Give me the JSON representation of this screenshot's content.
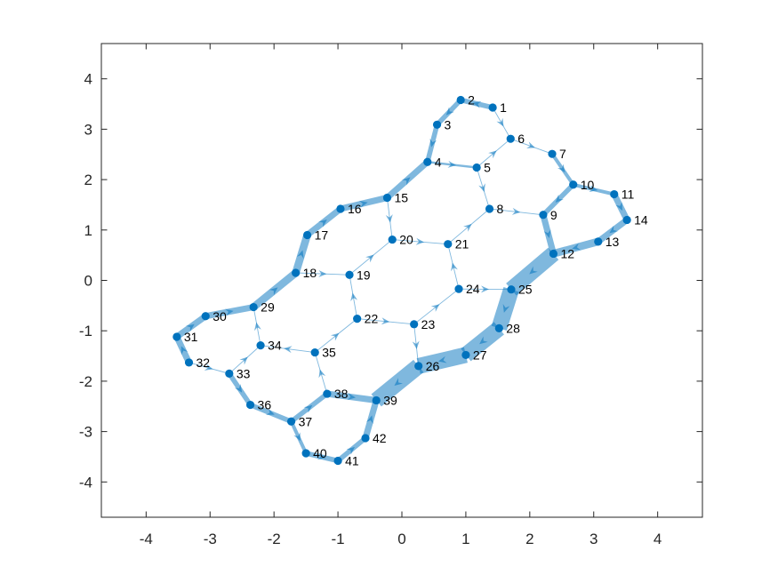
{
  "chart_data": {
    "type": "network-graph",
    "title": "",
    "xlabel": "",
    "ylabel": "",
    "xlim": [
      -4.7,
      4.7
    ],
    "ylim": [
      -4.7,
      4.7
    ],
    "xticks": [
      -4,
      -3,
      -2,
      -1,
      0,
      1,
      2,
      3,
      4
    ],
    "yticks": [
      -4,
      -3,
      -2,
      -1,
      0,
      1,
      2,
      3,
      4
    ],
    "grid": false,
    "colors": {
      "edge": "#0072BD",
      "node": "#0072BD",
      "axis": "#262626"
    },
    "nodes": [
      {
        "id": "1",
        "x": 1.42,
        "y": 3.43
      },
      {
        "id": "2",
        "x": 0.92,
        "y": 3.58
      },
      {
        "id": "3",
        "x": 0.55,
        "y": 3.09
      },
      {
        "id": "4",
        "x": 0.4,
        "y": 2.35
      },
      {
        "id": "5",
        "x": 1.17,
        "y": 2.24
      },
      {
        "id": "6",
        "x": 1.7,
        "y": 2.81
      },
      {
        "id": "7",
        "x": 2.35,
        "y": 2.51
      },
      {
        "id": "8",
        "x": 1.37,
        "y": 1.42
      },
      {
        "id": "9",
        "x": 2.21,
        "y": 1.3
      },
      {
        "id": "10",
        "x": 2.68,
        "y": 1.9
      },
      {
        "id": "11",
        "x": 3.32,
        "y": 1.71
      },
      {
        "id": "12",
        "x": 2.37,
        "y": 0.53
      },
      {
        "id": "13",
        "x": 3.07,
        "y": 0.77
      },
      {
        "id": "14",
        "x": 3.52,
        "y": 1.2
      },
      {
        "id": "15",
        "x": -0.23,
        "y": 1.64
      },
      {
        "id": "16",
        "x": -0.96,
        "y": 1.42
      },
      {
        "id": "17",
        "x": -1.48,
        "y": 0.9
      },
      {
        "id": "18",
        "x": -1.66,
        "y": 0.15
      },
      {
        "id": "19",
        "x": -0.82,
        "y": 0.11
      },
      {
        "id": "20",
        "x": -0.15,
        "y": 0.81
      },
      {
        "id": "21",
        "x": 0.72,
        "y": 0.72
      },
      {
        "id": "22",
        "x": -0.7,
        "y": -0.76
      },
      {
        "id": "23",
        "x": 0.19,
        "y": -0.87
      },
      {
        "id": "24",
        "x": 0.89,
        "y": -0.17
      },
      {
        "id": "25",
        "x": 1.71,
        "y": -0.18
      },
      {
        "id": "26",
        "x": 0.26,
        "y": -1.7
      },
      {
        "id": "27",
        "x": 1.0,
        "y": -1.48
      },
      {
        "id": "28",
        "x": 1.52,
        "y": -0.95
      },
      {
        "id": "29",
        "x": -2.32,
        "y": -0.53
      },
      {
        "id": "30",
        "x": -3.07,
        "y": -0.71
      },
      {
        "id": "31",
        "x": -3.52,
        "y": -1.12
      },
      {
        "id": "32",
        "x": -3.33,
        "y": -1.63
      },
      {
        "id": "33",
        "x": -2.7,
        "y": -1.85
      },
      {
        "id": "34",
        "x": -2.21,
        "y": -1.29
      },
      {
        "id": "35",
        "x": -1.36,
        "y": -1.43
      },
      {
        "id": "36",
        "x": -2.37,
        "y": -2.47
      },
      {
        "id": "37",
        "x": -1.73,
        "y": -2.8
      },
      {
        "id": "38",
        "x": -1.17,
        "y": -2.25
      },
      {
        "id": "39",
        "x": -0.4,
        "y": -2.38
      },
      {
        "id": "40",
        "x": -1.5,
        "y": -3.43
      },
      {
        "id": "41",
        "x": -1.0,
        "y": -3.58
      },
      {
        "id": "42",
        "x": -0.57,
        "y": -3.13
      }
    ],
    "edges": [
      {
        "from": "1",
        "to": "2",
        "weight": 4
      },
      {
        "from": "2",
        "to": "3",
        "weight": 4
      },
      {
        "from": "3",
        "to": "4",
        "weight": 4
      },
      {
        "from": "4",
        "to": "5",
        "weight": 2
      },
      {
        "from": "5",
        "to": "6",
        "weight": 1
      },
      {
        "from": "1",
        "to": "6",
        "weight": 1
      },
      {
        "from": "6",
        "to": "7",
        "weight": 1
      },
      {
        "from": "7",
        "to": "10",
        "weight": 3
      },
      {
        "from": "5",
        "to": "8",
        "weight": 1
      },
      {
        "from": "8",
        "to": "9",
        "weight": 1
      },
      {
        "from": "10",
        "to": "9",
        "weight": 4
      },
      {
        "from": "10",
        "to": "11",
        "weight": 3
      },
      {
        "from": "11",
        "to": "14",
        "weight": 5
      },
      {
        "from": "14",
        "to": "13",
        "weight": 5
      },
      {
        "from": "9",
        "to": "12",
        "weight": 5
      },
      {
        "from": "13",
        "to": "12",
        "weight": 6
      },
      {
        "from": "15",
        "to": "4",
        "weight": 5
      },
      {
        "from": "16",
        "to": "15",
        "weight": 5
      },
      {
        "from": "17",
        "to": "16",
        "weight": 5
      },
      {
        "from": "18",
        "to": "17",
        "weight": 6
      },
      {
        "from": "15",
        "to": "20",
        "weight": 1
      },
      {
        "from": "20",
        "to": "21",
        "weight": 1
      },
      {
        "from": "21",
        "to": "8",
        "weight": 1
      },
      {
        "from": "18",
        "to": "19",
        "weight": 1
      },
      {
        "from": "19",
        "to": "20",
        "weight": 1
      },
      {
        "from": "22",
        "to": "19",
        "weight": 1
      },
      {
        "from": "22",
        "to": "23",
        "weight": 1
      },
      {
        "from": "23",
        "to": "24",
        "weight": 1
      },
      {
        "from": "24",
        "to": "21",
        "weight": 1
      },
      {
        "from": "24",
        "to": "25",
        "weight": 1
      },
      {
        "from": "12",
        "to": "25",
        "weight": 12
      },
      {
        "from": "25",
        "to": "28",
        "weight": 12
      },
      {
        "from": "28",
        "to": "27",
        "weight": 12
      },
      {
        "from": "27",
        "to": "26",
        "weight": 12
      },
      {
        "from": "23",
        "to": "26",
        "weight": 1
      },
      {
        "from": "26",
        "to": "39",
        "weight": 12
      },
      {
        "from": "29",
        "to": "18",
        "weight": 6
      },
      {
        "from": "30",
        "to": "29",
        "weight": 5
      },
      {
        "from": "31",
        "to": "30",
        "weight": 5
      },
      {
        "from": "32",
        "to": "31",
        "weight": 5
      },
      {
        "from": "32",
        "to": "33",
        "weight": 1
      },
      {
        "from": "33",
        "to": "34",
        "weight": 1
      },
      {
        "from": "34",
        "to": "29",
        "weight": 1
      },
      {
        "from": "35",
        "to": "34",
        "weight": 1
      },
      {
        "from": "35",
        "to": "22",
        "weight": 1
      },
      {
        "from": "33",
        "to": "36",
        "weight": 4
      },
      {
        "from": "36",
        "to": "37",
        "weight": 4
      },
      {
        "from": "37",
        "to": "38",
        "weight": 4
      },
      {
        "from": "38",
        "to": "35",
        "weight": 1
      },
      {
        "from": "38",
        "to": "39",
        "weight": 5
      },
      {
        "from": "37",
        "to": "40",
        "weight": 3
      },
      {
        "from": "40",
        "to": "41",
        "weight": 4
      },
      {
        "from": "41",
        "to": "42",
        "weight": 4
      },
      {
        "from": "42",
        "to": "39",
        "weight": 5
      }
    ]
  }
}
